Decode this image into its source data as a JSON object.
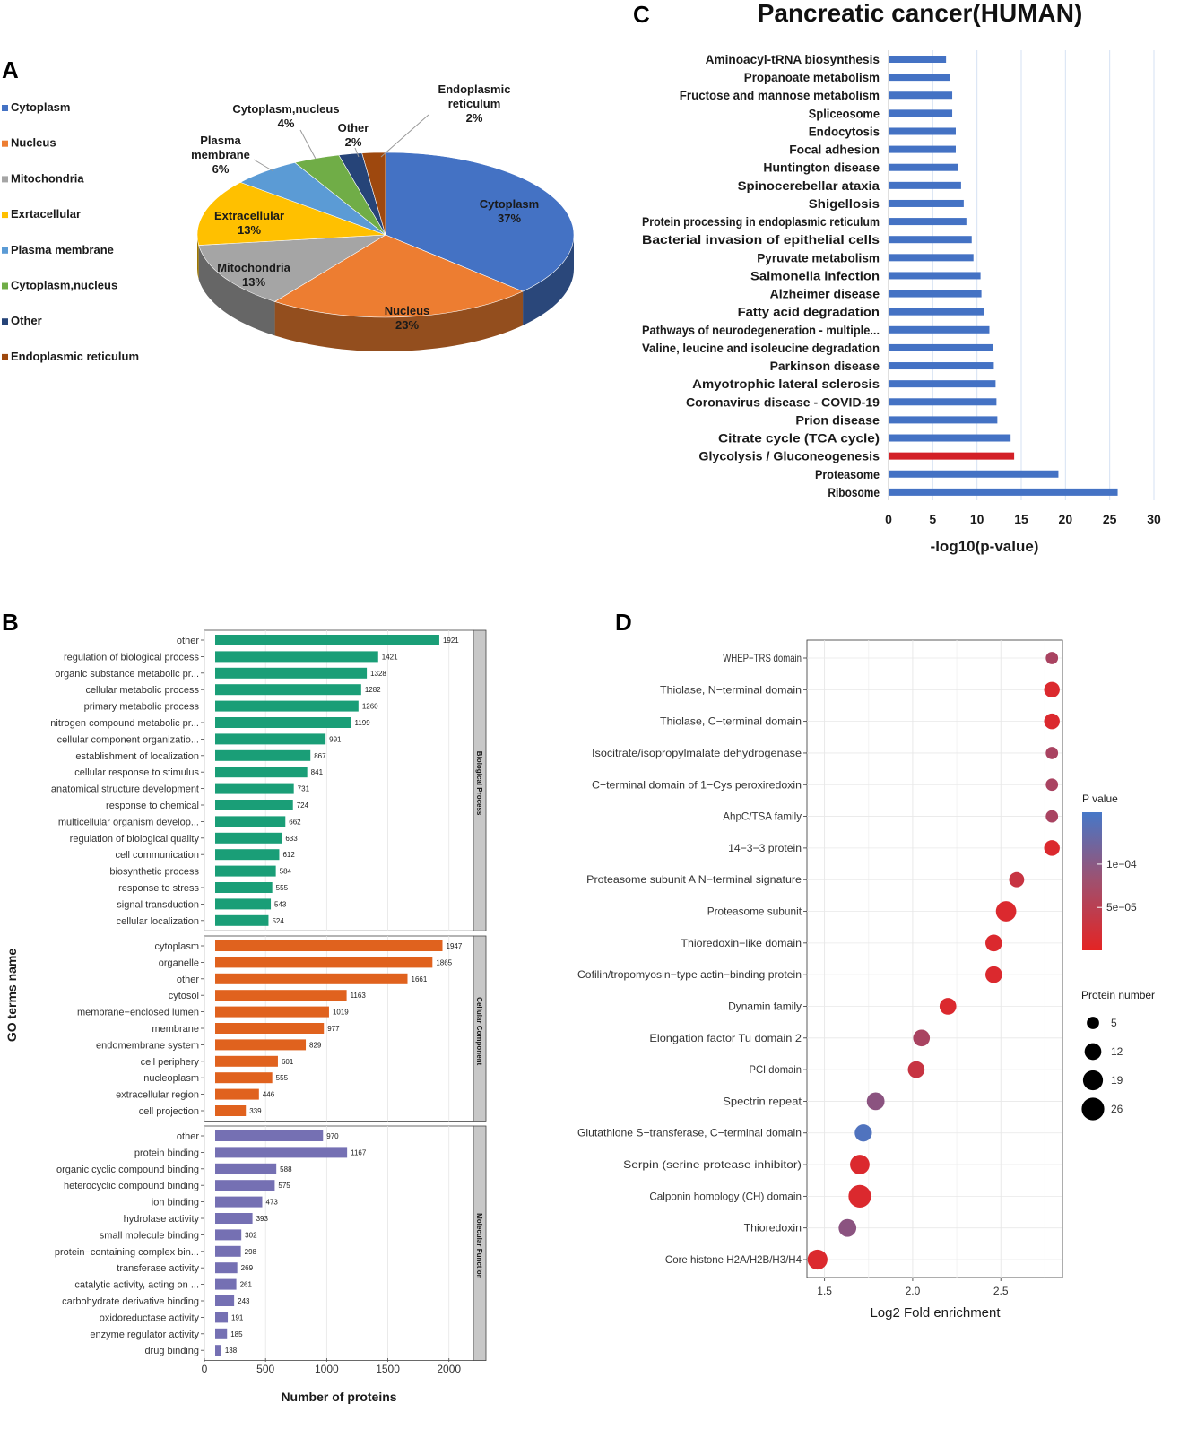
{
  "colors": {
    "blue": "#4472c4",
    "orange": "#ed7d31",
    "gray": "#a5a5a5",
    "yellow": "#ffc000",
    "lightblue": "#5b9bd5",
    "green": "#70ad47",
    "navy": "#264478",
    "brown": "#9e480e",
    "keggBlue": "#4472c4",
    "keggRed": "#d32027",
    "bp": "#1a9e77",
    "cc": "#e0621e",
    "mf": "#7570b3",
    "strip": "#c8c8c8",
    "grid": "#e6e6e6"
  },
  "panels": {
    "a": "A",
    "b": "B",
    "c": "C",
    "d": "D"
  },
  "chart_data": [
    {
      "id": "A",
      "type": "pie",
      "title": "",
      "legend": [
        "Cytoplasm",
        "Nucleus",
        "Mitochondria",
        "Exrtacellular",
        "Plasma membrane",
        "Cytoplasm,nucleus",
        "Other",
        "Endoplasmic reticulum"
      ],
      "slices": [
        {
          "name": "Cytoplasm",
          "label": "Cytoplasm",
          "pct": "37%",
          "value": 37,
          "color": "#4472c4"
        },
        {
          "name": "Nucleus",
          "label": "Nucleus",
          "pct": "23%",
          "value": 23,
          "color": "#ed7d31"
        },
        {
          "name": "Mitochondria",
          "label": "Mitochondria",
          "pct": "13%",
          "value": 13,
          "color": "#a5a5a5"
        },
        {
          "name": "Exrtacellular",
          "label": "Extracellular",
          "pct": "13%",
          "value": 13,
          "color": "#ffc000"
        },
        {
          "name": "Plasma membrane",
          "label": "Plasma membrane",
          "pct": "6%",
          "value": 6,
          "color": "#5b9bd5"
        },
        {
          "name": "Cytoplasm,nucleus",
          "label": "Cytoplasm,nucleus",
          "pct": "4%",
          "value": 4,
          "color": "#70ad47"
        },
        {
          "name": "Other",
          "label": "Other",
          "pct": "2%",
          "value": 2,
          "color": "#264478"
        },
        {
          "name": "Endoplasmic reticulum",
          "label": "Endoplasmic reticulum",
          "pct": "2%",
          "value": 2,
          "color": "#9e480e"
        }
      ]
    },
    {
      "id": "B",
      "type": "bar",
      "orientation": "horizontal",
      "xlabel": "Number of proteins",
      "ylabel": "GO terms name",
      "xlim": [
        0,
        2200
      ],
      "xticks": [
        0,
        500,
        1000,
        1500,
        2000
      ],
      "groups": [
        {
          "name": "Biological Process",
          "color": "#1a9e77",
          "categories": [
            "other",
            "regulation of biological process",
            "organic substance metabolic pr...",
            "cellular metabolic process",
            "primary metabolic process",
            "nitrogen compound metabolic pr...",
            "cellular component organizatio...",
            "establishment of localization",
            "cellular response to stimulus",
            "anatomical structure development",
            "response to chemical",
            "multicellular organism develop...",
            "regulation of biological quality",
            "cell communication",
            "biosynthetic process",
            "response to stress",
            "signal transduction",
            "cellular localization"
          ],
          "values": [
            1921,
            1421,
            1328,
            1282,
            1260,
            1199,
            991,
            867,
            841,
            731,
            724,
            662,
            633,
            612,
            584,
            555,
            543,
            524
          ]
        },
        {
          "name": "Cellular Component",
          "color": "#e0621e",
          "categories": [
            "cytoplasm",
            "organelle",
            "other",
            "cytosol",
            "membrane−enclosed lumen",
            "membrane",
            "endomembrane system",
            "cell periphery",
            "nucleoplasm",
            "extracellular region",
            "cell projection"
          ],
          "values": [
            1947,
            1865,
            1661,
            1163,
            1019,
            977,
            829,
            601,
            555,
            446,
            339
          ]
        },
        {
          "name": "Molecular Function",
          "color": "#7570b3",
          "categories": [
            "other",
            "protein binding",
            "organic cyclic compound binding",
            "heterocyclic compound binding",
            "ion binding",
            "hydrolase activity",
            "small molecule binding",
            "protein−containing complex bin...",
            "transferase activity",
            "catalytic activity, acting on ...",
            "carbohydrate derivative binding",
            "oxidoreductase activity",
            "enzyme regulator activity",
            "drug binding"
          ],
          "values": [
            970,
            1167,
            588,
            575,
            473,
            393,
            302,
            298,
            269,
            261,
            243,
            191,
            185,
            138
          ]
        }
      ]
    },
    {
      "id": "C",
      "type": "bar",
      "orientation": "horizontal",
      "title": "Pancreatic cancer(HUMAN)",
      "xlabel": "-log10(p-value)",
      "xlim": [
        0,
        30
      ],
      "xticks": [
        0,
        5,
        10,
        15,
        20,
        25,
        30
      ],
      "highlight": "Glycolysis / Gluconeogenesis",
      "categories": [
        "Aminoacyl-tRNA biosynthesis",
        "Propanoate metabolism",
        "Fructose and mannose metabolism",
        "Spliceosome",
        "Endocytosis",
        "Focal adhesion",
        "Huntington disease",
        "Spinocerebellar ataxia",
        "Shigellosis",
        "Protein processing in endoplasmic reticulum",
        "Bacterial invasion of epithelial cells",
        "Pyruvate metabolism",
        "Salmonella infection",
        "Alzheimer disease",
        "Fatty acid degradation",
        "Pathways of neurodegeneration - multiple...",
        "Valine, leucine and isoleucine degradation",
        "Parkinson disease",
        "Amyotrophic lateral sclerosis",
        "Coronavirus disease - COVID-19",
        "Prion disease",
        "Citrate cycle (TCA cycle)",
        "Glycolysis / Gluconeogenesis",
        "Proteasome",
        "Ribosome"
      ],
      "values": [
        6.5,
        6.9,
        7.2,
        7.2,
        7.6,
        7.6,
        7.9,
        8.2,
        8.5,
        8.8,
        9.4,
        9.6,
        10.4,
        10.5,
        10.8,
        11.4,
        11.8,
        11.9,
        12.1,
        12.2,
        12.3,
        13.8,
        14.2,
        19.2,
        25.9
      ]
    },
    {
      "id": "D",
      "type": "scatter",
      "xlabel": "Log2 Fold enrichment",
      "xlim": [
        1.4,
        2.85
      ],
      "xticks": [
        1.5,
        2.0,
        2.5
      ],
      "xticklabels": [
        "1.5",
        "2.0",
        "2.5"
      ],
      "legend_pvalue": {
        "title": "P value",
        "ticks": [
          "1e−04",
          "5e−05"
        ],
        "tick_values": [
          0.0001,
          5e-05
        ],
        "range": [
          5e-07,
          0.00016
        ]
      },
      "legend_size": {
        "title": "Protein number",
        "labels": [
          "5",
          "12",
          "19",
          "26"
        ],
        "values": [
          5,
          12,
          19,
          26
        ]
      },
      "points": [
        {
          "term": "WHEP−TRS domain",
          "x": 2.79,
          "n": 5,
          "p": 6e-05
        },
        {
          "term": "Thiolase, N−terminal domain",
          "x": 2.79,
          "n": 10,
          "p": 1e-05
        },
        {
          "term": "Thiolase, C−terminal domain",
          "x": 2.79,
          "n": 10,
          "p": 1e-05
        },
        {
          "term": "Isocitrate/isopropylmalate dehydrogenase",
          "x": 2.79,
          "n": 5,
          "p": 6e-05
        },
        {
          "term": "C−terminal domain of 1−Cys peroxiredoxin",
          "x": 2.79,
          "n": 5,
          "p": 6e-05
        },
        {
          "term": "AhpC/TSA family",
          "x": 2.79,
          "n": 5,
          "p": 6e-05
        },
        {
          "term": "14−3−3 protein",
          "x": 2.79,
          "n": 10,
          "p": 1e-05
        },
        {
          "term": "Proteasome subunit A N−terminal signature",
          "x": 2.59,
          "n": 9,
          "p": 3e-05
        },
        {
          "term": "Proteasome subunit",
          "x": 2.53,
          "n": 20,
          "p": 1e-05
        },
        {
          "term": "Thioredoxin−like domain",
          "x": 2.46,
          "n": 12,
          "p": 1e-05
        },
        {
          "term": "Cofilin/tropomyosin−type actin−binding protein",
          "x": 2.46,
          "n": 12,
          "p": 1e-05
        },
        {
          "term": "Dynamin family",
          "x": 2.2,
          "n": 12,
          "p": 1e-05
        },
        {
          "term": "Elongation factor Tu domain 2",
          "x": 2.05,
          "n": 12,
          "p": 6e-05
        },
        {
          "term": "PCI domain",
          "x": 2.02,
          "n": 12,
          "p": 3e-05
        },
        {
          "term": "Spectrin repeat",
          "x": 1.79,
          "n": 14,
          "p": 9e-05
        },
        {
          "term": "Glutathione S−transferase, C−terminal domain",
          "x": 1.72,
          "n": 13,
          "p": 0.00015
        },
        {
          "term": "Serpin (serine protease inhibitor)",
          "x": 1.7,
          "n": 18,
          "p": 1e-05
        },
        {
          "term": "Calponin homology (CH) domain",
          "x": 1.7,
          "n": 26,
          "p": 1e-05
        },
        {
          "term": "Thioredoxin",
          "x": 1.63,
          "n": 14,
          "p": 9e-05
        },
        {
          "term": "Core histone H2A/H2B/H3/H4",
          "x": 1.46,
          "n": 19,
          "p": 1e-05
        }
      ]
    }
  ]
}
